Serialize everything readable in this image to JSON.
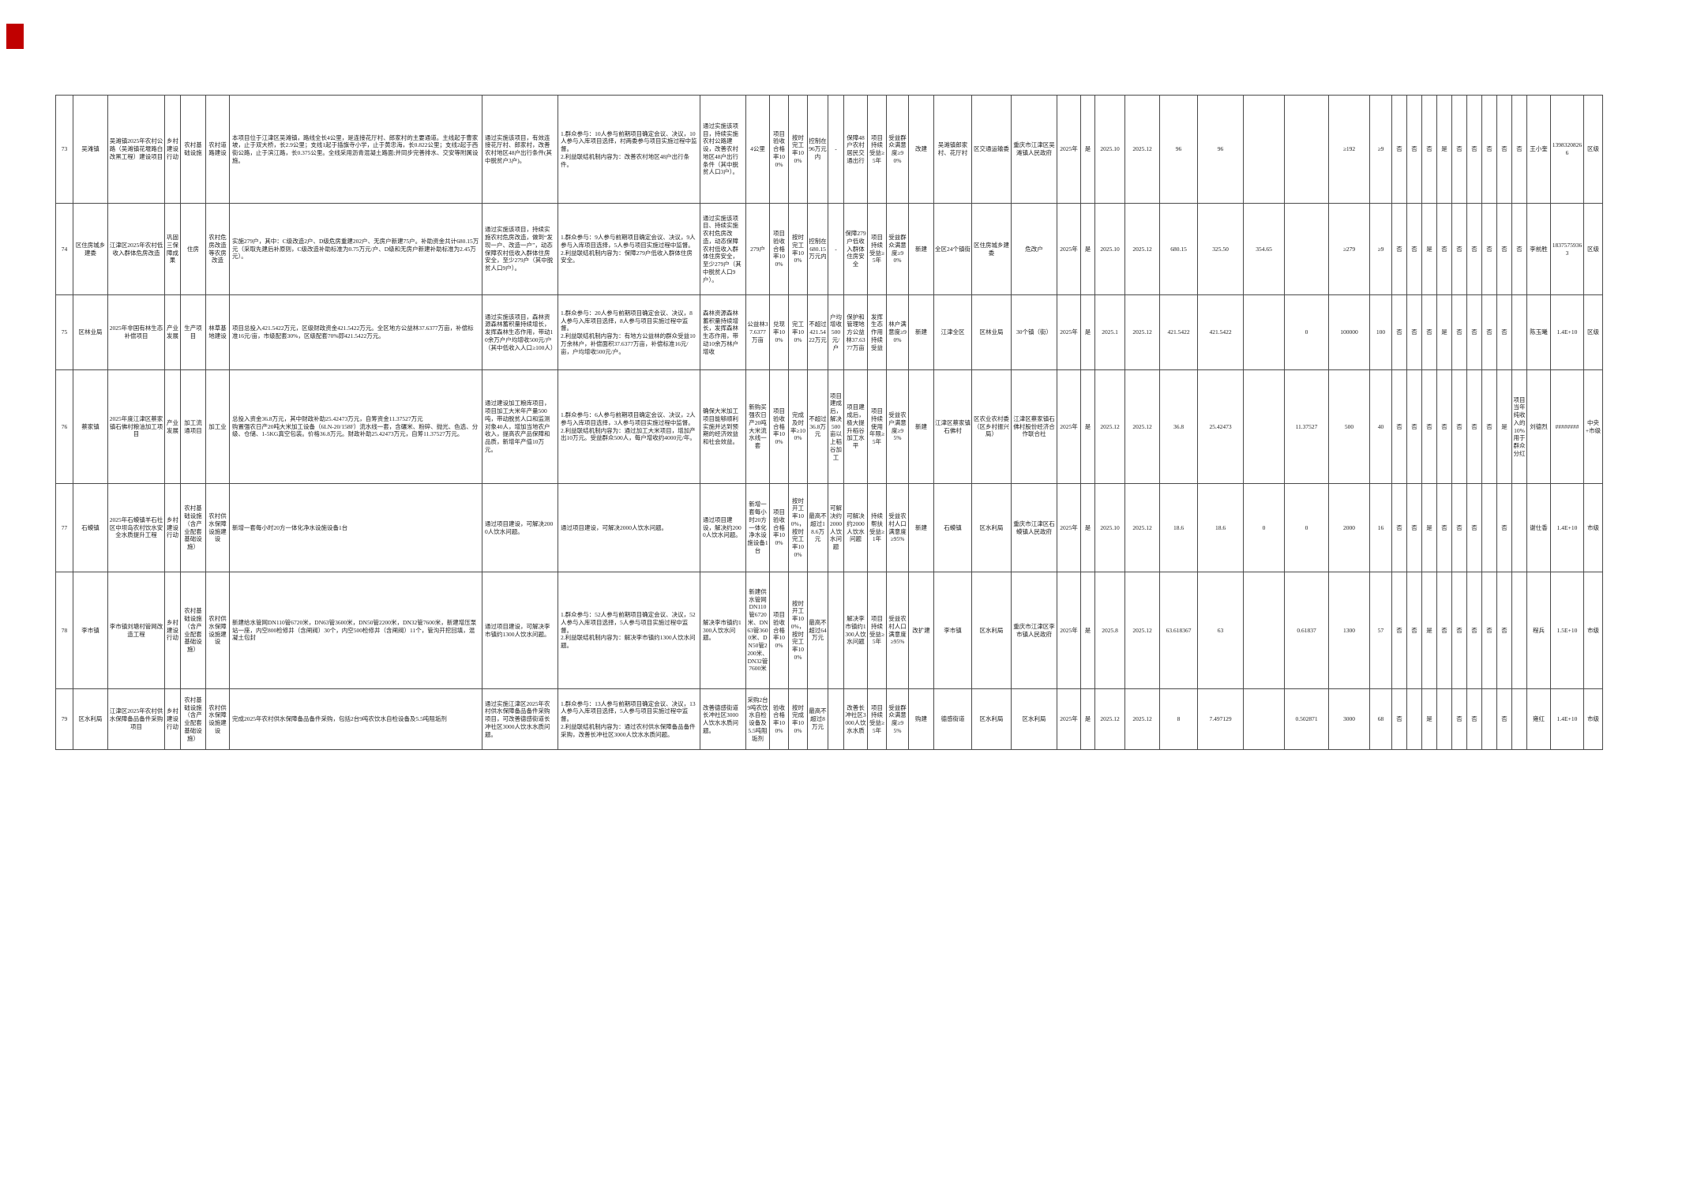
{
  "document": {
    "corner_mark_color": "#c00000"
  },
  "table": {
    "rows": [
      {
        "cells": [
          "73",
          "吴滩镇",
          "吴滩镇2025年农村公路（吴滩镇花堰路白改黑工程）建设项目",
          "乡村建设行动",
          "农村基础设施",
          "农村道路建设",
          "本项目位于江津区吴滩镇，路线全长4公里，是连接花厅村、郎家村的主要通道。主线起于曹家坡，止于双大桥，长2.9公里；支线1起于插旗寺小学，止于黄忠海，长0.822公里；支线2起于西街公路，止于滨江路，长0.375公里。全线采用沥青混凝土路面;并同步完善排水、交安等附属设施。",
          "通过实施该项目，有效连接花厅村、郎家村，改善农村地区48户出行条件(其中脱贫户3户)。",
          "1.群众参与：10人参与前期项目确定会议、决议，10人参与入库项目选择，村两委参与项目实施过程中监督。\n2.利益联结机制内容为：改善农村地区48户出行条件。",
          "通过实施该项目，持续实施农村公路建设，改善农村地区48户出行条件（其中脱贫人口3户）。",
          "4公里",
          "项目验收合格率100%",
          "按时完工率100%",
          "控制在96万元内",
          "-",
          "保障48户农村居民交通出行",
          "项目持续受益≥5年",
          "受益群众满意度≥90%",
          "改建",
          "吴滩镇郎家村、花厅村",
          "区交通运输委",
          "重庆市江津区吴滩镇人民政府",
          "2025年",
          "是",
          "2025.10",
          "2025.12",
          "96",
          "96",
          "",
          "",
          "≥192",
          "≥9",
          "否",
          "否",
          "否",
          "是",
          "否",
          "否",
          "否",
          "否",
          "否",
          "王小奎",
          "13983208266",
          "区级"
        ]
      },
      {
        "cells": [
          "74",
          "区住房城乡建委",
          "江津区2025年农村低收入群体危房改造",
          "巩固三保障成果",
          "住房",
          "农村危房改造等农房改造",
          "实施279户，其中：C级改造2户、D级危房重建202户、无房户新建75户。补助资金共计680.15万元（采取先建后补原则，C级改造补助标准为0.75万元/户、D级和无房户新建补助标准为2.45万元）。",
          "通过实施该项目，持续实施农村危房改造，做到“发现一户、改造一户”，动态保障农村低收入群体住房安全，至少279户（其中脱贫人口9户）。",
          "1.群众参与：9人参与前期项目确定会议、决议，9人参与入库项目选择，5人参与项目实施过程中监督。\n2.利益联结机制内容为：保障279户低收入群体住房安全。",
          "通过实施该项目、持续实施农村危房改造，动态保障农村低收入群体住房安全，至少279户（其中脱贫人口9户）。",
          "279户",
          "项目验收合格率100%",
          "按时完工率100%",
          "控制在680.15万元内",
          "-",
          "保障279户低收入群体住房安全",
          "项目持续受益≥5年",
          "受益群众满意度≥90%",
          "新建",
          "全区24个镇街",
          "区住房城乡建委",
          "危改户",
          "2025年",
          "是",
          "2025.10",
          "2025.12",
          "680.15",
          "325.50",
          "354.65",
          "",
          "≥279",
          "≥9",
          "否",
          "否",
          "是",
          "否",
          "否",
          "否",
          "否",
          "否",
          "否",
          "李前胜",
          "18375759363",
          "区级"
        ]
      },
      {
        "cells": [
          "75",
          "区林业局",
          "2025年非国有林生态补偿项目",
          "产业发展",
          "生产项目",
          "林草基地建设",
          "项目总投入421.5422万元，区级财政资金421.5422万元。全区地方公益林37.6377万亩，补偿标准16元/亩，市级配套30%，区级配套70%即421.5422万元。",
          "通过实施该项目，森林资源森林蓄积量持续增长，发挥森林生态作用，带动10余万户户均增收500元/户（其中低收入人口≥100人）",
          "1.群众参与：20人参与前期项目确定会议、决议，8人参与入库项目选择，8人参与项目实施过程中监督。\n2.利益联结机制内容为：有地方公益林的群众受益10万余林户，补偿面积37.6377万亩，补偿标准16元/亩，户均增收500元/户。",
          "森林资源森林蓄积量持续增长，发挥森林生态作用，带动10余万林户增收",
          "公益林37.6377万亩",
          "兑现率100%",
          "完工率100%",
          "不超过421.5422万元",
          "户均增收500元/户",
          "保护和管理地方公益林37.6377万亩",
          "发挥生态作用持续受益",
          "林户满意度≥90%",
          "新建",
          "江津全区",
          "区林业局",
          "30个镇（街）",
          "2025年",
          "是",
          "2025.1",
          "2025.12",
          "421.5422",
          "421.5422",
          "",
          "0",
          "100000",
          "100",
          "否",
          "否",
          "否",
          "是",
          "否",
          "否",
          "否",
          "否",
          "",
          "陈玉曦",
          "1.4E+10",
          "区级"
        ]
      },
      {
        "cells": [
          "76",
          "蔡家镇",
          "2025年度江津区蔡家镇石佛村粮油加工项目",
          "产业发展",
          "加工流通项目",
          "加工业",
          "总投入资金36.8万元，其中财政补助25.42473万元，自筹资金11.37527万元\n购置强农日产20吨大米加工设备（6LN-20/158F）流水线一套，含碾米、粉碎、抛光、色选、分级、仓储、1-5KG真空包装。价格36.8万元。财政补助25.42473万元，自筹11.37527万元。",
          "通过建设加工粮库项目，项目加工大米年产量500吨，带动脱贫人口和监测对象40人，增加当地农户收入，提高农产品保障和品质，新增年产值10万元。",
          "1.群众参与：6人参与前期项目确定会议、决议，2人参与入库项目选择，3人参与项目实施过程中监督。\n2.利益联结机制内容为：通过加工大米项目，增加产出10万元。受益群众500人，每户增收约4000元/年。",
          "确保大米加工项目能够顺利实施并达到预期的经济效益和社会效益。",
          "新购买强农日产20吨大米流水线一套",
          "项目验收合格率100%",
          "完成及时率≥100%",
          "不超过36.8万元",
          "项目建成后，解决500亩以上稻谷加工",
          "项目建成后，极大提升稻谷加工水平",
          "项目持续使用年限≥5年",
          "受益农户满意度≥95%",
          "新建",
          "江津区蔡家镇石佛村",
          "区农业农村委（区乡村振兴局）",
          "江津区蔡家镇石佛村股份经济合作联合社",
          "2025年",
          "是",
          "2025.12",
          "2025.12",
          "36.8",
          "25.42473",
          "",
          "11.37527",
          "500",
          "40",
          "否",
          "否",
          "否",
          "否",
          "否",
          "否",
          "否",
          "是",
          "项目当年纯收入的10%用于群众分红",
          "刘德烈",
          "########",
          "中央+市级"
        ]
      },
      {
        "cells": [
          "77",
          "石蟆镇",
          "2025年石蟆镇羊石社区中坝岛农村饮水安全水质提升工程",
          "乡村建设行动",
          "农村基础设施（含产业配套基础设施）",
          "农村供水保障设施建设",
          "新增一套每小时20方一体化净水设施设备1台",
          "通过项目建设，可解决2000人饮水问题。",
          "通过项目建设，可解决2000人饮水问题。",
          "通过项目建设，解决约2000人饮水问题。",
          "新增一套每小时20方一体化净水设施设备1台",
          "项目验收合格率100%",
          "按时开工率100%，按时完工率100%",
          "最高不超过18.6万元",
          "可解决约2000人饮水问题",
          "可解决约2000人饮水问题",
          "持续帮扶受益≥1年",
          "受益农村人口满意度≥95%",
          "新建",
          "石蟆镇",
          "区水利局",
          "重庆市江津区石蟆镇人民政府",
          "2025年",
          "是",
          "2025.10",
          "2025.12",
          "18.6",
          "18.6",
          "0",
          "0",
          "2000",
          "16",
          "否",
          "否",
          "是",
          "否",
          "否",
          "否",
          "",
          "否",
          "",
          "谢仕香",
          "1.4E+10",
          "市级"
        ]
      },
      {
        "cells": [
          "78",
          "李市镇",
          "李市镇刘塘村管网改造工程",
          "乡村建设行动",
          "农村基础设施（含产业配套基础设施）",
          "农村供水保障设施建设",
          "新建给水管网DN110管6720米，DN63管3600米，DN50管2200米，DN32管7600米，新建增压泵站一座，内空800检修井（含闸阀）30个，内空500检修井（含闸阀）11个，管沟开挖回填，混凝土包封",
          "通过项目建设，可解决李市镇约1300人饮水问题。",
          "1.群众参与：52人参与前期项目确定会议、决议，52人参与入库项目选择，5人参与项目实施过程中监督。\n2.利益联结机制内容为：解决李市镇约1300人饮水问题。",
          "解决李市镇约1300人饮水问题。",
          "新建供水管网DN110管6720米、DN63管3600米、DN50管2200米、DN32管7600米",
          "项目验收合格率100%",
          "按时开工率100%，按时完工率100%",
          "最高不超过64万元",
          "",
          "解决李市镇约1300人饮水问题",
          "项目持续受益≥5年",
          "受益农村人口满意度≥95%",
          "改扩建",
          "李市镇",
          "区水利局",
          "重庆市江津区李市镇人民政府",
          "2025年",
          "是",
          "2025.8",
          "2025.12",
          "63.618367",
          "63",
          "",
          "0.61837",
          "1300",
          "57",
          "否",
          "否",
          "是",
          "否",
          "否",
          "否",
          "否",
          "否",
          "",
          "程兵",
          "1.5E+10",
          "市级"
        ]
      },
      {
        "cells": [
          "79",
          "区水利局",
          "江津区2025年农村供水保障备品备件采购项目",
          "乡村建设行动",
          "农村基础设施（含产业配套基础设施）",
          "农村供水保障设施建设",
          "完成2025年农村供水保障备品备件采购，包括2台9吨农饮水自检设备及5.5吨阻垢剂",
          "通过实施江津区2025年农村供水保障备品备件采购项目，可改善德感街道长冲社区3000人饮水水质问题。",
          "1.群众参与：13人参与前期项目确定会议、决议，13人参与入库项目选择，5人参与项目实施过程中监督。\n2.利益联结机制内容为：通过农村供水保障备品备件采购，改善长冲社区3000人饮水水质问题。",
          "改善德感街道长冲社区3000人饮水水质问题。",
          "采购2台9吨农饮水自检设备及5.5吨阻垢剂",
          "验收合格率100%",
          "按时完成率100%",
          "最高不超过8万元",
          "",
          "改善长冲社区3000人饮水水质",
          "项目持续受益≥5年",
          "受益群众满意度≥95%",
          "购建",
          "德感街道",
          "区水利局",
          "区水利局",
          "2025年",
          "是",
          "2025.12",
          "2025.12",
          "8",
          "7.497129",
          "",
          "0.502871",
          "3000",
          "68",
          "否",
          "",
          "是",
          "",
          "否",
          "否",
          "",
          "否",
          "",
          "雍红",
          "1.4E+10",
          "市级"
        ]
      }
    ]
  }
}
